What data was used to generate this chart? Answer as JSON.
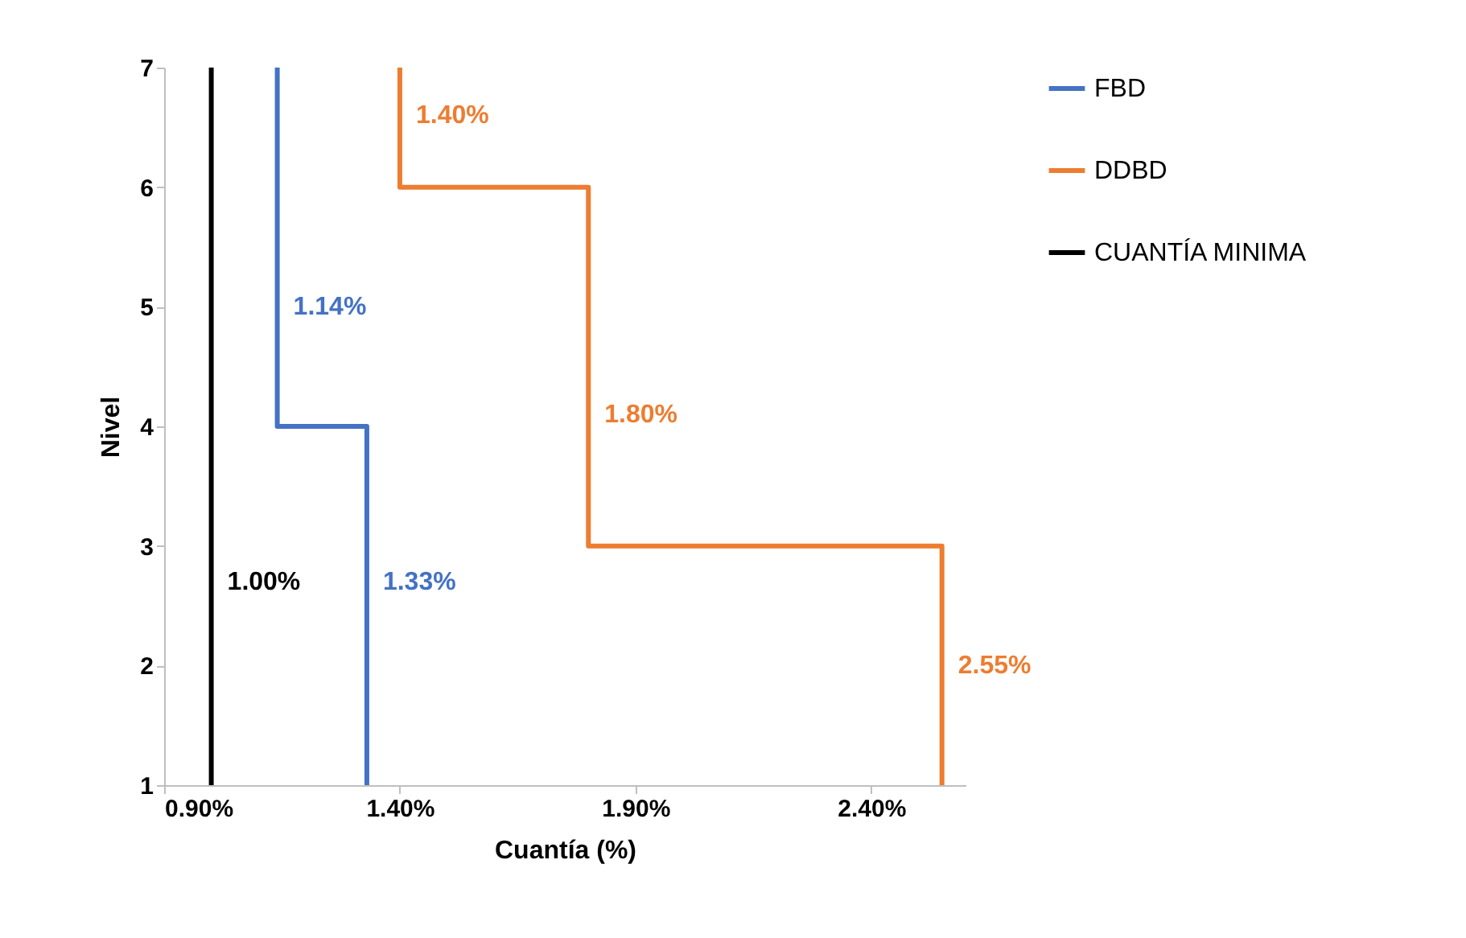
{
  "chart_data": {
    "type": "line",
    "xlabel": "Cuantía (%)",
    "ylabel": "Nivel",
    "xlim": [
      0.9,
      2.6
    ],
    "xticks": [
      {
        "value": 0.9,
        "label": "0.90%"
      },
      {
        "value": 1.4,
        "label": "1.40%"
      },
      {
        "value": 1.9,
        "label": "1.90%"
      },
      {
        "value": 2.4,
        "label": "2.40%"
      }
    ],
    "ylim": [
      1,
      7
    ],
    "yticks": [
      1,
      2,
      3,
      4,
      5,
      6,
      7
    ],
    "grid": false,
    "legend": "right",
    "marker": "none",
    "line_style": "solid",
    "series": [
      {
        "name": "FBD",
        "color": "#4472c4",
        "x": [
          1.33,
          1.33,
          1.14,
          1.14
        ],
        "values": [
          1,
          4,
          4,
          7
        ]
      },
      {
        "name": "DDBD",
        "color": "#ed7d31",
        "x": [
          2.55,
          2.55,
          1.8,
          1.8,
          1.4,
          1.4
        ],
        "values": [
          1,
          3,
          3,
          6,
          6,
          7
        ]
      },
      {
        "name": "CUANTÍA MINIMA",
        "color": "#000000",
        "x": [
          1.0,
          1.0
        ],
        "values": [
          1,
          7
        ]
      }
    ],
    "annotations": [
      {
        "text": "1.40%",
        "x": 1.4,
        "y": 6.6
      },
      {
        "text": "1.14%",
        "x": 1.14,
        "y": 5.0
      },
      {
        "text": "1.80%",
        "x": 1.8,
        "y": 4.1
      },
      {
        "text": "1.00%",
        "x": 1.0,
        "y": 2.7
      },
      {
        "text": "1.33%",
        "x": 1.33,
        "y": 2.7
      },
      {
        "text": "2.55%",
        "x": 2.55,
        "y": 2.0
      }
    ]
  }
}
